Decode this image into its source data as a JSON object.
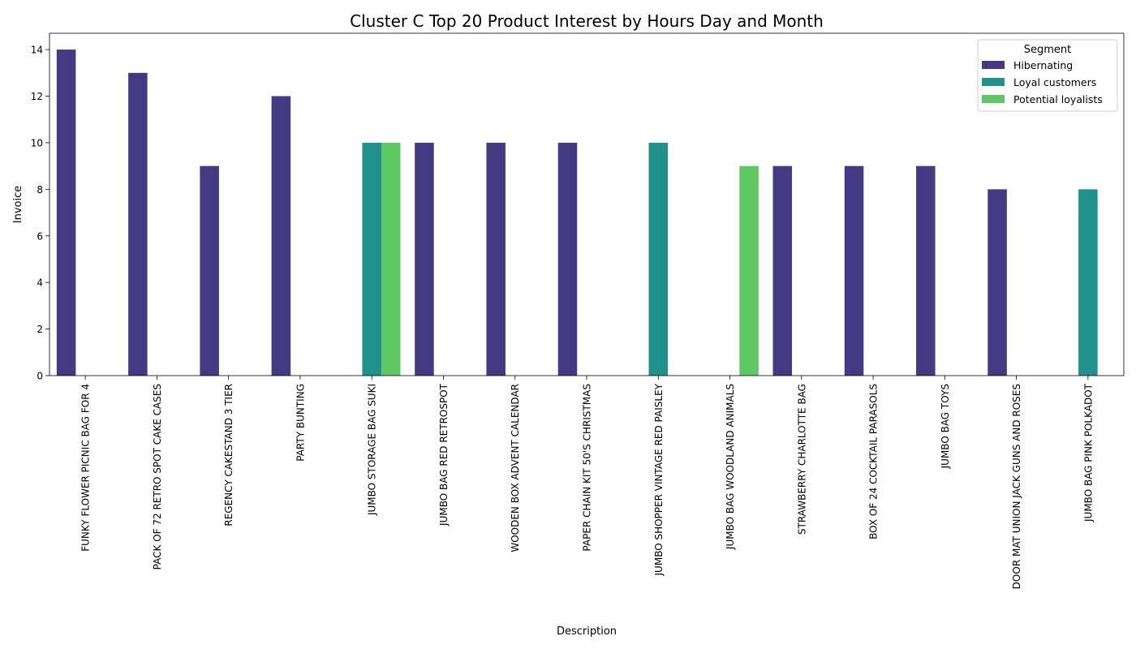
{
  "chart_data": {
    "type": "bar",
    "title": "Cluster C Top 20 Product Interest by Hours Day and Month",
    "xlabel": "Description",
    "ylabel": "Invoice",
    "ylim": [
      0,
      14.7
    ],
    "yticks": [
      0,
      2,
      4,
      6,
      8,
      10,
      12,
      14
    ],
    "legend": {
      "title": "Segment",
      "placement": "top-right"
    },
    "categories": [
      "FUNKY FLOWER PICNIC BAG FOR 4",
      "PACK OF 72 RETRO SPOT CAKE CASES",
      "REGENCY CAKESTAND 3 TIER",
      "PARTY BUNTING",
      "JUMBO STORAGE BAG SUKI",
      "JUMBO BAG RED RETROSPOT",
      "WOODEN BOX ADVENT CALENDAR",
      "PAPER CHAIN KIT 50'S CHRISTMAS",
      "JUMBO SHOPPER VINTAGE RED PAISLEY",
      "JUMBO BAG WOODLAND ANIMALS",
      "STRAWBERRY CHARLOTTE BAG",
      "BOX OF 24 COCKTAIL PARASOLS",
      "JUMBO BAG TOYS",
      "DOOR MAT UNION JACK GUNS AND ROSES",
      "JUMBO BAG PINK POLKADOT"
    ],
    "series": [
      {
        "name": "Hibernating",
        "color": "#443983",
        "values": [
          14,
          13,
          9,
          12,
          null,
          10,
          10,
          10,
          null,
          null,
          9,
          9,
          9,
          8,
          null
        ]
      },
      {
        "name": "Loyal customers",
        "color": "#21918c",
        "values": [
          null,
          null,
          null,
          null,
          10,
          null,
          null,
          null,
          10,
          null,
          null,
          null,
          null,
          null,
          8
        ]
      },
      {
        "name": "Potential loyalists",
        "color": "#5ec962",
        "values": [
          null,
          null,
          null,
          null,
          10,
          null,
          null,
          null,
          null,
          9,
          null,
          null,
          null,
          null,
          null
        ]
      }
    ]
  }
}
